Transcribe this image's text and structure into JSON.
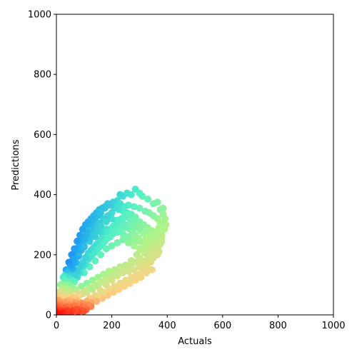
{
  "chart_data": {
    "type": "scatter",
    "title": "",
    "xlabel": "Actuals",
    "ylabel": "Predictions",
    "xlim": [
      0,
      1000
    ],
    "ylim": [
      0,
      1000
    ],
    "grid": false,
    "xticks": [
      0,
      200,
      400,
      600,
      800,
      1000
    ],
    "yticks": [
      0,
      200,
      400,
      600,
      800,
      1000
    ],
    "colormap": "rainbow",
    "colormap_anchors": [
      "#ff0000",
      "#ff7a45",
      "#fdd285",
      "#a9f48b",
      "#4ff0c8",
      "#1ea7f0",
      "#3c4ef0"
    ],
    "points": [
      [
        2,
        2
      ],
      [
        4,
        20
      ],
      [
        6,
        35
      ],
      [
        8,
        48
      ],
      [
        3,
        30
      ],
      [
        10,
        10
      ],
      [
        12,
        28
      ],
      [
        15,
        40
      ],
      [
        5,
        45
      ],
      [
        9,
        5
      ],
      [
        18,
        15
      ],
      [
        20,
        30
      ],
      [
        25,
        22
      ],
      [
        30,
        38
      ],
      [
        35,
        12
      ],
      [
        40,
        28
      ],
      [
        45,
        48
      ],
      [
        50,
        20
      ],
      [
        55,
        40
      ],
      [
        60,
        55
      ],
      [
        65,
        30
      ],
      [
        70,
        50
      ],
      [
        75,
        18
      ],
      [
        80,
        62
      ],
      [
        90,
        40
      ],
      [
        95,
        70
      ],
      [
        100,
        35
      ],
      [
        110,
        75
      ],
      [
        120,
        55
      ],
      [
        130,
        85
      ],
      [
        140,
        65
      ],
      [
        150,
        95
      ],
      [
        160,
        80
      ],
      [
        170,
        110
      ],
      [
        180,
        100
      ],
      [
        190,
        125
      ],
      [
        200,
        115
      ],
      [
        210,
        140
      ],
      [
        220,
        130
      ],
      [
        230,
        155
      ],
      [
        240,
        145
      ],
      [
        250,
        165
      ],
      [
        260,
        160
      ],
      [
        270,
        180
      ],
      [
        280,
        175
      ],
      [
        290,
        200
      ],
      [
        300,
        190
      ],
      [
        310,
        215
      ],
      [
        320,
        205
      ],
      [
        330,
        230
      ],
      [
        340,
        220
      ],
      [
        350,
        245
      ],
      [
        360,
        235
      ],
      [
        370,
        255
      ],
      [
        380,
        265
      ],
      [
        390,
        285
      ],
      [
        395,
        300
      ],
      [
        392,
        320
      ],
      [
        385,
        335
      ],
      [
        375,
        350
      ],
      [
        385,
        355
      ],
      [
        365,
        375
      ],
      [
        350,
        370
      ],
      [
        330,
        385
      ],
      [
        310,
        395
      ],
      [
        300,
        405
      ],
      [
        285,
        418
      ],
      [
        270,
        400
      ],
      [
        255,
        405
      ],
      [
        240,
        395
      ],
      [
        230,
        400
      ],
      [
        220,
        380
      ],
      [
        205,
        375
      ],
      [
        190,
        365
      ],
      [
        175,
        355
      ],
      [
        160,
        340
      ],
      [
        150,
        330
      ],
      [
        140,
        320
      ],
      [
        130,
        305
      ],
      [
        120,
        295
      ],
      [
        110,
        275
      ],
      [
        100,
        260
      ],
      [
        90,
        245
      ],
      [
        80,
        225
      ],
      [
        70,
        210
      ],
      [
        60,
        185
      ],
      [
        50,
        160
      ],
      [
        40,
        140
      ],
      [
        30,
        115
      ],
      [
        20,
        90
      ],
      [
        10,
        75
      ],
      [
        5,
        60
      ],
      [
        15,
        100
      ],
      [
        25,
        125
      ],
      [
        35,
        150
      ],
      [
        45,
        175
      ],
      [
        55,
        200
      ],
      [
        65,
        220
      ],
      [
        75,
        245
      ],
      [
        85,
        265
      ],
      [
        95,
        285
      ],
      [
        105,
        300
      ],
      [
        115,
        310
      ],
      [
        125,
        320
      ],
      [
        135,
        330
      ],
      [
        145,
        340
      ],
      [
        155,
        350
      ],
      [
        165,
        355
      ],
      [
        175,
        360
      ],
      [
        185,
        370
      ],
      [
        195,
        365
      ],
      [
        210,
        355
      ],
      [
        225,
        350
      ],
      [
        240,
        345
      ],
      [
        255,
        340
      ],
      [
        270,
        335
      ],
      [
        285,
        325
      ],
      [
        300,
        310
      ],
      [
        315,
        300
      ],
      [
        330,
        290
      ],
      [
        345,
        280
      ],
      [
        360,
        275
      ],
      [
        370,
        290
      ],
      [
        375,
        305
      ],
      [
        365,
        320
      ],
      [
        350,
        330
      ],
      [
        335,
        340
      ],
      [
        320,
        345
      ],
      [
        300,
        355
      ],
      [
        280,
        360
      ],
      [
        260,
        365
      ],
      [
        245,
        360
      ],
      [
        230,
        370
      ],
      [
        215,
        360
      ],
      [
        200,
        340
      ],
      [
        185,
        330
      ],
      [
        170,
        320
      ],
      [
        155,
        305
      ],
      [
        140,
        290
      ],
      [
        125,
        280
      ],
      [
        110,
        265
      ],
      [
        100,
        250
      ],
      [
        90,
        235
      ],
      [
        80,
        210
      ],
      [
        70,
        190
      ],
      [
        60,
        170
      ],
      [
        50,
        145
      ],
      [
        40,
        125
      ],
      [
        30,
        100
      ],
      [
        20,
        80
      ],
      [
        15,
        60
      ],
      [
        25,
        70
      ],
      [
        35,
        85
      ],
      [
        45,
        100
      ],
      [
        55,
        115
      ],
      [
        65,
        130
      ],
      [
        75,
        145
      ],
      [
        85,
        160
      ],
      [
        95,
        175
      ],
      [
        105,
        190
      ],
      [
        115,
        205
      ],
      [
        125,
        215
      ],
      [
        135,
        225
      ],
      [
        145,
        235
      ],
      [
        155,
        245
      ],
      [
        165,
        255
      ],
      [
        175,
        265
      ],
      [
        185,
        275
      ],
      [
        195,
        285
      ],
      [
        205,
        295
      ],
      [
        215,
        305
      ],
      [
        225,
        310
      ],
      [
        235,
        320
      ],
      [
        245,
        325
      ],
      [
        255,
        330
      ],
      [
        265,
        320
      ],
      [
        275,
        310
      ],
      [
        285,
        300
      ],
      [
        295,
        290
      ],
      [
        305,
        280
      ],
      [
        315,
        270
      ],
      [
        325,
        260
      ],
      [
        335,
        250
      ],
      [
        345,
        240
      ],
      [
        355,
        230
      ],
      [
        365,
        225
      ],
      [
        375,
        235
      ],
      [
        380,
        245
      ],
      [
        380,
        260
      ],
      [
        370,
        270
      ],
      [
        355,
        260
      ],
      [
        340,
        265
      ],
      [
        320,
        275
      ],
      [
        300,
        285
      ],
      [
        280,
        290
      ],
      [
        260,
        300
      ],
      [
        240,
        305
      ],
      [
        220,
        315
      ],
      [
        200,
        320
      ],
      [
        180,
        310
      ],
      [
        160,
        295
      ],
      [
        145,
        280
      ],
      [
        130,
        265
      ],
      [
        115,
        250
      ],
      [
        100,
        230
      ],
      [
        90,
        215
      ],
      [
        80,
        195
      ],
      [
        70,
        175
      ],
      [
        60,
        155
      ],
      [
        50,
        130
      ],
      [
        40,
        110
      ],
      [
        30,
        95
      ],
      [
        20,
        75
      ],
      [
        45,
        85
      ],
      [
        55,
        95
      ],
      [
        65,
        110
      ],
      [
        75,
        125
      ],
      [
        85,
        140
      ],
      [
        95,
        155
      ],
      [
        105,
        170
      ],
      [
        115,
        185
      ],
      [
        125,
        195
      ],
      [
        135,
        205
      ],
      [
        145,
        215
      ],
      [
        155,
        225
      ],
      [
        165,
        235
      ],
      [
        175,
        245
      ],
      [
        185,
        255
      ],
      [
        195,
        260
      ],
      [
        205,
        270
      ],
      [
        215,
        280
      ],
      [
        225,
        285
      ],
      [
        235,
        290
      ],
      [
        245,
        295
      ],
      [
        255,
        290
      ],
      [
        265,
        285
      ],
      [
        275,
        275
      ],
      [
        285,
        265
      ],
      [
        295,
        255
      ],
      [
        305,
        245
      ],
      [
        315,
        240
      ],
      [
        325,
        230
      ],
      [
        335,
        220
      ],
      [
        345,
        210
      ],
      [
        355,
        205
      ],
      [
        365,
        200
      ],
      [
        370,
        210
      ],
      [
        360,
        215
      ],
      [
        340,
        225
      ],
      [
        320,
        235
      ],
      [
        300,
        245
      ],
      [
        280,
        250
      ],
      [
        260,
        260
      ],
      [
        240,
        270
      ],
      [
        220,
        275
      ],
      [
        200,
        280
      ],
      [
        180,
        285
      ],
      [
        160,
        275
      ],
      [
        140,
        260
      ],
      [
        120,
        245
      ],
      [
        100,
        225
      ],
      [
        80,
        205
      ],
      [
        60,
        180
      ],
      [
        40,
        150
      ],
      [
        30,
        130
      ],
      [
        100,
        140
      ],
      [
        120,
        160
      ],
      [
        140,
        180
      ],
      [
        160,
        200
      ],
      [
        180,
        220
      ],
      [
        200,
        230
      ],
      [
        220,
        240
      ],
      [
        240,
        250
      ],
      [
        260,
        240
      ],
      [
        280,
        230
      ],
      [
        300,
        220
      ],
      [
        320,
        210
      ],
      [
        340,
        200
      ],
      [
        350,
        190
      ],
      [
        330,
        185
      ],
      [
        310,
        180
      ],
      [
        290,
        175
      ],
      [
        270,
        170
      ],
      [
        250,
        165
      ],
      [
        230,
        160
      ],
      [
        210,
        150
      ],
      [
        190,
        145
      ],
      [
        170,
        135
      ],
      [
        150,
        125
      ],
      [
        130,
        115
      ],
      [
        110,
        105
      ],
      [
        90,
        95
      ],
      [
        70,
        85
      ],
      [
        50,
        75
      ],
      [
        40,
        60
      ],
      [
        60,
        60
      ],
      [
        80,
        70
      ],
      [
        100,
        80
      ],
      [
        120,
        90
      ],
      [
        140,
        100
      ],
      [
        160,
        110
      ],
      [
        180,
        120
      ],
      [
        200,
        130
      ],
      [
        220,
        135
      ],
      [
        240,
        140
      ],
      [
        260,
        145
      ],
      [
        280,
        150
      ],
      [
        300,
        160
      ],
      [
        320,
        165
      ],
      [
        340,
        175
      ],
      [
        150,
        60
      ],
      [
        170,
        75
      ],
      [
        190,
        85
      ],
      [
        210,
        95
      ],
      [
        230,
        105
      ],
      [
        250,
        115
      ],
      [
        270,
        125
      ],
      [
        290,
        135
      ],
      [
        310,
        145
      ],
      [
        330,
        155
      ],
      [
        130,
        50
      ],
      [
        110,
        45
      ],
      [
        90,
        35
      ],
      [
        70,
        30
      ],
      [
        50,
        25
      ],
      [
        30,
        18
      ],
      [
        85,
        25
      ],
      [
        105,
        30
      ],
      [
        125,
        40
      ],
      [
        145,
        45
      ],
      [
        165,
        55
      ],
      [
        185,
        65
      ],
      [
        205,
        75
      ],
      [
        225,
        85
      ],
      [
        245,
        95
      ],
      [
        265,
        105
      ],
      [
        285,
        115
      ],
      [
        305,
        125
      ],
      [
        325,
        140
      ],
      [
        345,
        150
      ],
      [
        6,
        12
      ],
      [
        3,
        8
      ],
      [
        1,
        15
      ],
      [
        7,
        25
      ],
      [
        11,
        40
      ],
      [
        14,
        6
      ],
      [
        2,
        50
      ],
      [
        8,
        18
      ],
      [
        12,
        45
      ],
      [
        16,
        32
      ],
      [
        22,
        8
      ],
      [
        28,
        26
      ],
      [
        32,
        44
      ],
      [
        38,
        16
      ],
      [
        42,
        36
      ],
      [
        48,
        8
      ],
      [
        52,
        30
      ],
      [
        58,
        12
      ],
      [
        62,
        42
      ],
      [
        68,
        18
      ],
      [
        72,
        38
      ],
      [
        78,
        10
      ],
      [
        82,
        30
      ],
      [
        88,
        15
      ],
      [
        92,
        28
      ],
      [
        98,
        12
      ],
      [
        102,
        22
      ],
      [
        108,
        18
      ],
      [
        115,
        32
      ],
      [
        125,
        28
      ]
    ]
  }
}
